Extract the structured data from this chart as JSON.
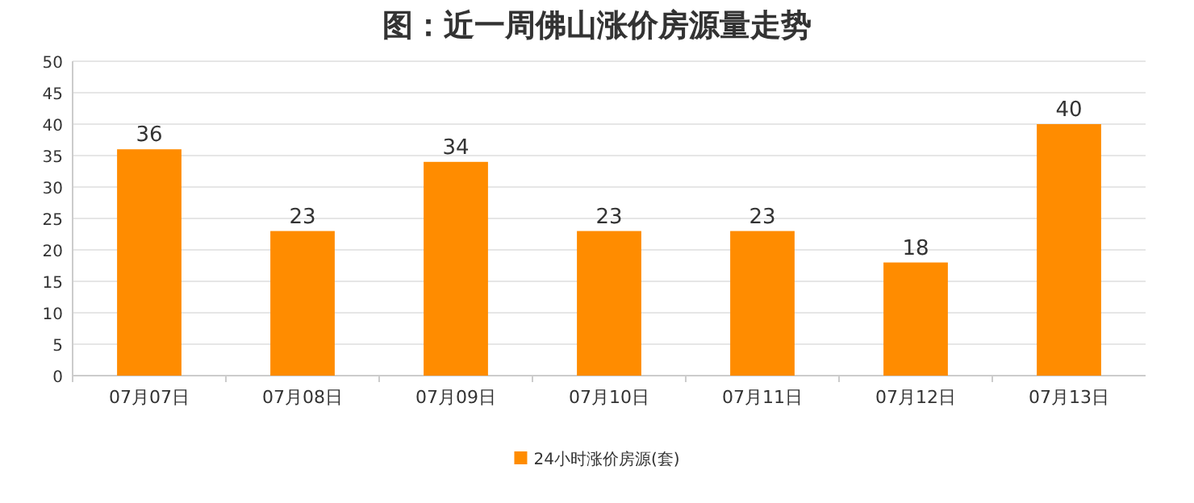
{
  "chart_data": {
    "type": "bar",
    "title": "图：近一周佛山涨价房源量走势",
    "categories": [
      "07月07日",
      "07月08日",
      "07月09日",
      "07月10日",
      "07月11日",
      "07月12日",
      "07月13日"
    ],
    "series": [
      {
        "name": "24小时涨价房源(套)",
        "color": "#ff8c00",
        "values": [
          36,
          23,
          34,
          23,
          23,
          18,
          40
        ]
      }
    ],
    "ylim": [
      0,
      50
    ],
    "yticks": [
      0,
      5,
      10,
      15,
      20,
      25,
      30,
      35,
      40,
      45,
      50
    ],
    "grid": "y",
    "legend": "bottom",
    "data_labels": true
  }
}
